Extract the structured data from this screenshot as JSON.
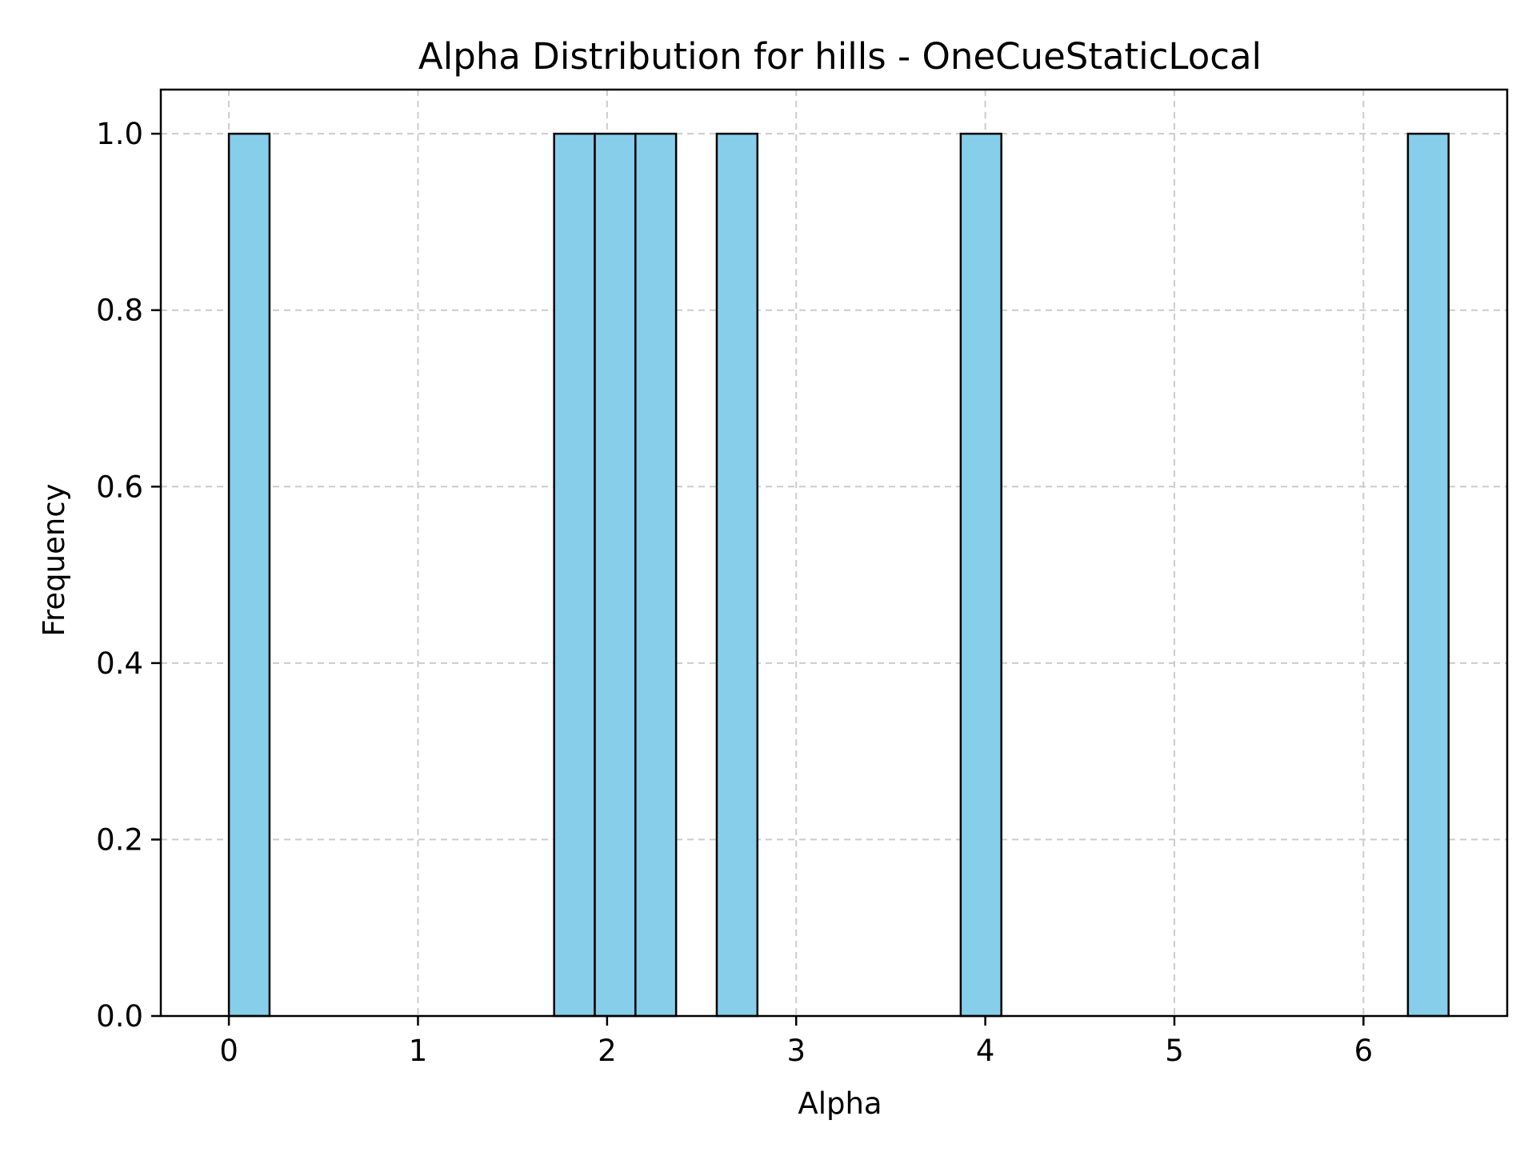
{
  "chart_data": {
    "type": "bar",
    "title": "Alpha Distribution for hills - OneCueStaticLocal",
    "xlabel": "Alpha",
    "ylabel": "Frequency",
    "xlim": [
      -0.36,
      6.76
    ],
    "ylim": [
      0.0,
      1.05
    ],
    "xticks": [
      0,
      1,
      2,
      3,
      4,
      5,
      6
    ],
    "xtick_labels": [
      "0",
      "1",
      "2",
      "3",
      "4",
      "5",
      "6"
    ],
    "yticks": [
      0.0,
      0.2,
      0.4,
      0.6,
      0.8,
      1.0
    ],
    "ytick_labels": [
      "0.0",
      "0.2",
      "0.4",
      "0.6",
      "0.8",
      "1.0"
    ],
    "grid": true,
    "bin_width": 0.215,
    "bars": [
      {
        "start": 0.0,
        "end": 0.215,
        "value": 1
      },
      {
        "start": 1.72,
        "end": 1.935,
        "value": 1
      },
      {
        "start": 1.935,
        "end": 2.15,
        "value": 1
      },
      {
        "start": 2.15,
        "end": 2.365,
        "value": 1
      },
      {
        "start": 2.58,
        "end": 2.795,
        "value": 1
      },
      {
        "start": 3.87,
        "end": 4.085,
        "value": 1
      },
      {
        "start": 6.235,
        "end": 6.45,
        "value": 1
      }
    ],
    "colors": {
      "bar_fill": "#87CEEB",
      "bar_edge": "#000000",
      "grid": "#cccccc",
      "axes": "#000000"
    }
  }
}
